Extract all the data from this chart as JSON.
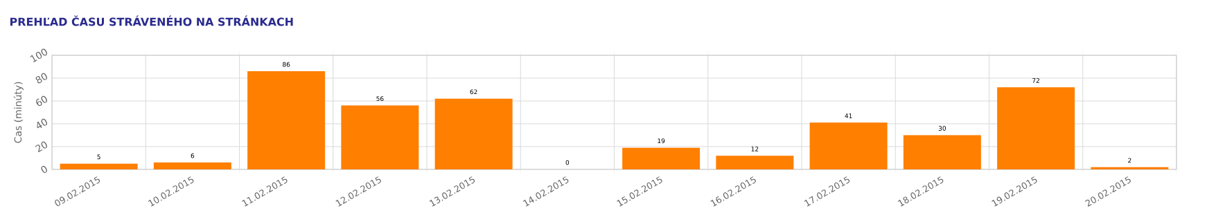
{
  "chart_data": {
    "type": "bar",
    "title": "PREHĽAD ČASU STRÁVENÉHO NA STRÁNKACH",
    "ylabel": "Cas (minúty)",
    "categories": [
      "09.02.2015",
      "10.02.2015",
      "11.02.2015",
      "12.02.2015",
      "13.02.2015",
      "14.02.2015",
      "15.02.2015",
      "16.02.2015",
      "17.02.2015",
      "18.02.2015",
      "19.02.2015",
      "20.02.2015"
    ],
    "values": [
      5,
      6,
      86,
      56,
      62,
      0,
      19,
      12,
      41,
      30,
      72,
      2
    ],
    "color": "#ff7f00",
    "ylim": [
      0,
      100
    ],
    "yticks": [
      0,
      20,
      40,
      60,
      80,
      100
    ],
    "grid": true,
    "data_labels": true
  }
}
